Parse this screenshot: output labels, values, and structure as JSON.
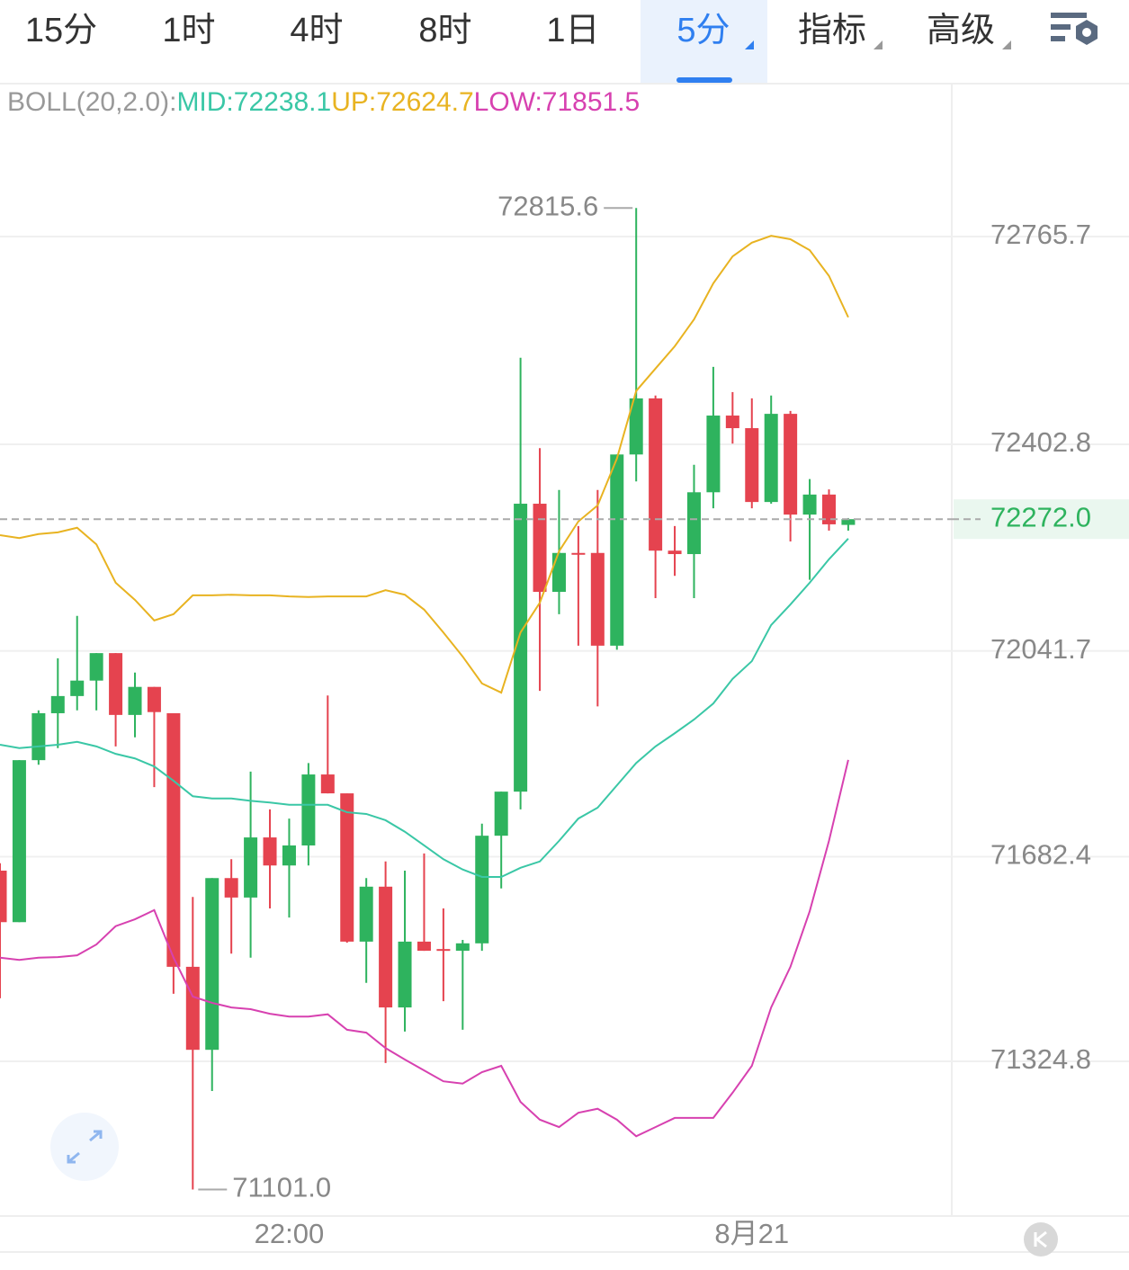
{
  "tabs": [
    "15分",
    "1时",
    "4时",
    "8时",
    "1日",
    "5分",
    "指标",
    "高级"
  ],
  "active_tab": 5,
  "chart_data": {
    "type": "candlestick",
    "indicator": {
      "name": "BOLL(20,2.0):",
      "mid": "MID:72238.1",
      "up": "UP:72624.7",
      "low": "LOW:71851.5"
    },
    "categories": [
      null,
      null,
      null,
      null,
      null,
      null,
      null,
      null,
      null,
      null,
      null,
      null,
      null,
      null,
      null,
      "22:00",
      null,
      null,
      null,
      null,
      null,
      null,
      null,
      null,
      null,
      null,
      null,
      null,
      null,
      null,
      null,
      null,
      null,
      null,
      null,
      null,
      null,
      null,
      null,
      "8月21",
      null,
      null,
      null,
      null,
      null
    ],
    "open": [
      71658,
      71568,
      71851,
      71933,
      71963,
      71990,
      72038,
      71930,
      71979,
      71933,
      71490,
      71345,
      71645,
      71611,
      71716,
      71667,
      71702,
      71826,
      71793,
      71534,
      71630,
      71419,
      71534,
      71521,
      71518,
      71531,
      71719,
      71796,
      72299,
      72145,
      72213,
      72213,
      72051,
      72385,
      72483,
      72217,
      72211,
      72319,
      72453,
      72431,
      72302,
      72456,
      72280,
      72315,
      72262
    ],
    "high": [
      71671,
      71851,
      71938,
      72029,
      72103,
      72038,
      72038,
      72004,
      71979,
      71933,
      71612,
      71645,
      71678,
      71831,
      71765,
      71749,
      71846,
      71964,
      71793,
      71645,
      71674,
      71658,
      71688,
      71592,
      71537,
      71740,
      71796,
      72554,
      72396,
      72323,
      72260,
      72323,
      72385,
      72815.6,
      72488,
      72260,
      72367,
      72538,
      72494,
      72483,
      72488,
      72461,
      72342,
      72324,
      72274
    ],
    "low": [
      71435,
      71568,
      71843,
      71872,
      71938,
      71938,
      71875,
      71891,
      71804,
      71443,
      71101,
      71273,
      71513,
      71506,
      71592,
      71576,
      71667,
      71793,
      71532,
      71462,
      71322,
      71377,
      71518,
      71430,
      71380,
      71518,
      71627,
      71765,
      71972,
      72106,
      72051,
      71945,
      72044,
      72338,
      72134,
      72173,
      72134,
      72291,
      72404,
      72291,
      72299,
      72233,
      72166,
      72252,
      72252
    ],
    "close": [
      71568,
      71851,
      71933,
      71963,
      71990,
      72038,
      71930,
      71979,
      71935,
      71490,
      71345,
      71645,
      71611,
      71716,
      71667,
      71702,
      71826,
      71793,
      71534,
      71630,
      71419,
      71534,
      71518,
      71518,
      71531,
      71719,
      71796,
      72299,
      72145,
      72213,
      72211,
      72051,
      72385,
      72483,
      72217,
      72211,
      72319,
      72453,
      72431,
      72302,
      72456,
      72280,
      72315,
      72263,
      72272
    ],
    "up_color": "#2eb35e",
    "down_color": "#e5434f",
    "series": [
      {
        "name": "MID",
        "color": "#3ac7a6",
        "values": [
          71878,
          71872,
          71875,
          71878,
          71883,
          71875,
          71862,
          71854,
          71840,
          71815,
          71788,
          71784,
          71784,
          71780,
          71777,
          71773,
          71773,
          71773,
          71760,
          71757,
          71746,
          71726,
          71702,
          71678,
          71660,
          71647,
          71647,
          71663,
          71674,
          71710,
          71749,
          71768,
          71807,
          71846,
          71875,
          71898,
          71922,
          71950,
          71993,
          72024,
          72087,
          72123,
          72161,
          72202,
          72238.1
        ]
      },
      {
        "name": "UP",
        "color": "#e8b321",
        "values": [
          72244,
          72239,
          72246,
          72249,
          72257,
          72228,
          72161,
          72131,
          72095,
          72106,
          72139,
          72139,
          72140,
          72139,
          72139,
          72137,
          72136,
          72137,
          72137,
          72137,
          72148,
          72140,
          72114,
          72074,
          72032,
          71985,
          71969,
          72074,
          72126,
          72216,
          72268,
          72296,
          72378,
          72496,
          72535,
          72574,
          72621,
          72684,
          72731,
          72755,
          72767,
          72761,
          72742,
          72697,
          72624.7
        ]
      },
      {
        "name": "LOW",
        "color": "#d741b0",
        "values": [
          71506,
          71502,
          71506,
          71507,
          71510,
          71529,
          71561,
          71573,
          71589,
          71506,
          71438,
          71427,
          71419,
          71416,
          71408,
          71403,
          71403,
          71407,
          71380,
          71375,
          71348,
          71328,
          71309,
          71290,
          71286,
          71306,
          71317,
          71254,
          71223,
          71210,
          71235,
          71242,
          71223,
          71194,
          71210,
          71226,
          71226,
          71226,
          71270,
          71317,
          71419,
          71490,
          71587,
          71710,
          71851.5
        ]
      }
    ],
    "ylim": [
      71054.6,
      73029.7
    ],
    "yticks": [
      72765.7,
      72402.8,
      72041.7,
      71682.4,
      71324.8
    ],
    "grid": true,
    "last_price": {
      "value": 72272,
      "label": "72272.0"
    },
    "annotations": [
      {
        "value": 72815.6,
        "label": "72815.6"
      },
      {
        "value": 71101,
        "label": "71101.0"
      }
    ]
  }
}
